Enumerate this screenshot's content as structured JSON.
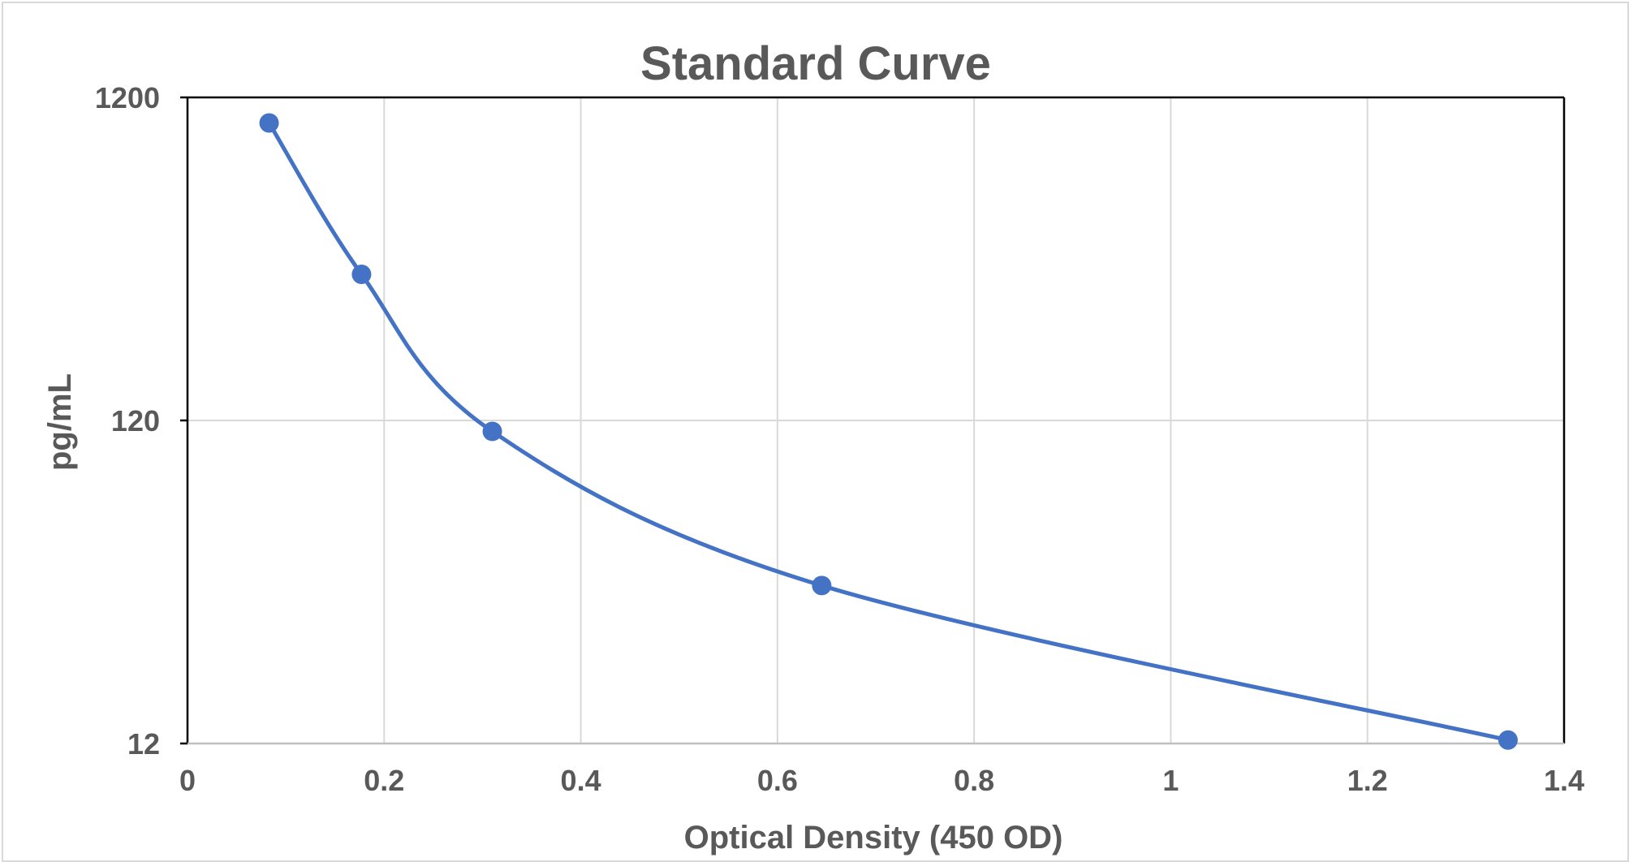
{
  "chart_data": {
    "type": "scatter",
    "title": "Standard Curve",
    "xlabel": "Optical Density (450 OD)",
    "ylabel": "pg/mL",
    "xlim": [
      0,
      1.4
    ],
    "ylim": [
      12,
      1200
    ],
    "y_scale": "log",
    "x_ticks": [
      0,
      0.2,
      0.4,
      0.6,
      0.8,
      1,
      1.2,
      1.4
    ],
    "x_tick_labels": [
      "0",
      "0.2",
      "0.4",
      "0.6",
      "0.8",
      "1",
      "1.2",
      "1.4"
    ],
    "y_ticks": [
      12,
      120,
      1200
    ],
    "y_tick_labels": [
      "12",
      "120",
      "1200"
    ],
    "grid": "vertical and horizontal major gridlines",
    "legend": "none",
    "line_style": "smoothed line with markers",
    "series": [
      {
        "color": "#4472c4",
        "points": [
          {
            "x": 0.083,
            "y": 1000
          },
          {
            "x": 0.177,
            "y": 340
          },
          {
            "x": 0.31,
            "y": 111
          },
          {
            "x": 0.645,
            "y": 37
          },
          {
            "x": 1.343,
            "y": 12.3
          }
        ]
      }
    ]
  }
}
